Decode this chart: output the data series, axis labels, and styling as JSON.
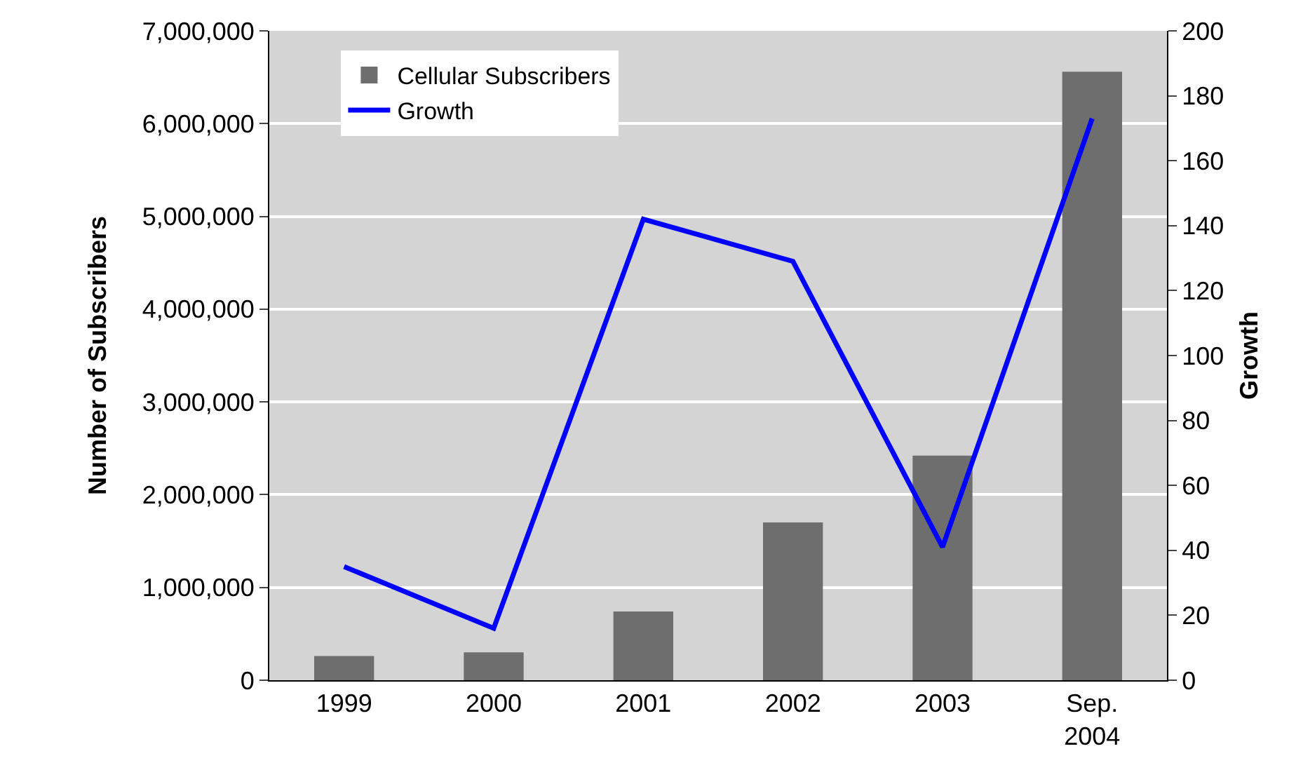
{
  "chart_data": {
    "type": "bar",
    "categories": [
      "1999",
      "2000",
      "2001",
      "2002",
      "2003",
      "Sep. 2004"
    ],
    "series": [
      {
        "name": "Cellular Subscribers",
        "color": "#6e6e6e",
        "values": [
          260000,
          300000,
          740000,
          1700000,
          2420000,
          6560000
        ]
      },
      {
        "name": "Growth",
        "type": "line",
        "axis": "y2",
        "color": "#0000ff",
        "values": [
          35,
          16,
          142,
          129,
          41,
          173
        ]
      }
    ],
    "ylabel": "Number of Subscribers",
    "y2label": "Growth",
    "ylim": [
      0,
      7000000
    ],
    "yticks": [
      {
        "value": 0,
        "label": "0"
      },
      {
        "value": 1000000,
        "label": "1,000,000"
      },
      {
        "value": 2000000,
        "label": "2,000,000"
      },
      {
        "value": 3000000,
        "label": "3,000,000"
      },
      {
        "value": 4000000,
        "label": "4,000,000"
      },
      {
        "value": 5000000,
        "label": "5,000,000"
      },
      {
        "value": 6000000,
        "label": "6,000,000"
      },
      {
        "value": 7000000,
        "label": "7,000,000"
      }
    ],
    "y2lim": [
      0,
      200
    ],
    "y2ticks": [
      0,
      20,
      40,
      60,
      80,
      100,
      120,
      140,
      160,
      180,
      200
    ],
    "grid": "y",
    "legend": "top left",
    "marker": "none",
    "line_style": "solid"
  }
}
